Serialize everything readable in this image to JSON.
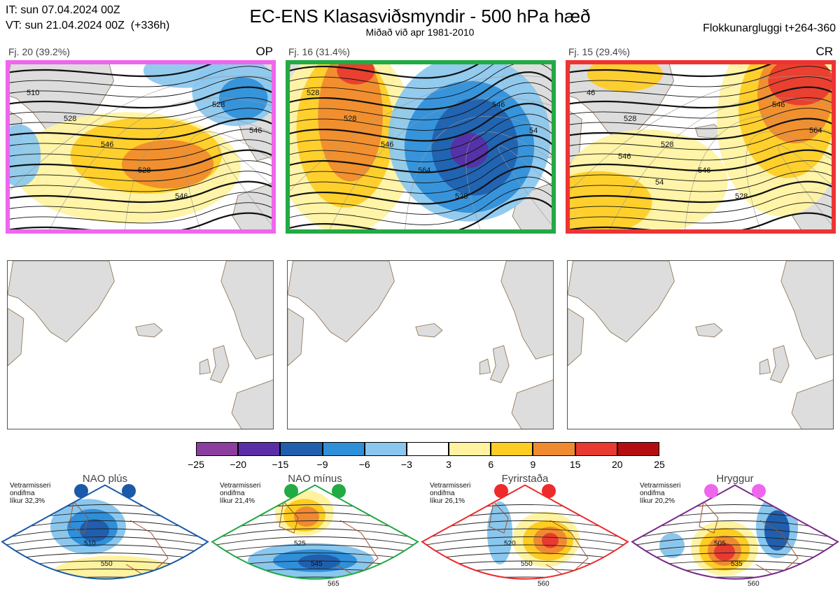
{
  "header": {
    "it_line": "IT: sun 07.04.2024 00Z",
    "vt_line": "VT: sun 21.04.2024 00Z  (+336h)",
    "title": "EC-ENS Klasasviðsmyndir - 500 hPa hæð",
    "subtitle": "Miðað við apr 1981-2010",
    "window": "Flokkunargluggi t+264-360"
  },
  "clusters": [
    {
      "label": "Fj. 20 (39.2%)",
      "tag": "OP",
      "frame_color": "#ee66ee",
      "contours": [
        "510",
        "528",
        "546",
        "528",
        "546",
        "528",
        "546"
      ]
    },
    {
      "label": "Fj. 16 (31.4%)",
      "tag": "",
      "frame_color": "#22aa44",
      "contours": [
        "528",
        "528",
        "546",
        "564",
        "528",
        "546",
        "54"
      ]
    },
    {
      "label": "Fj. 15 (29.4%)",
      "tag": "CR",
      "frame_color": "#ee3333",
      "contours": [
        "46",
        "528",
        "528",
        "546",
        "528",
        "546",
        "564",
        "546",
        "54"
      ]
    }
  ],
  "colorbar": {
    "colors": [
      "#8b3e9e",
      "#5a2ea6",
      "#1f5fae",
      "#2f8fd9",
      "#8ac7ee",
      "#ffffff",
      "#fff3a0",
      "#ffcc22",
      "#f08a30",
      "#e83a30",
      "#b30d12"
    ],
    "labels": [
      "−25",
      "−20",
      "−15",
      "−9",
      "−6",
      "−3",
      "3",
      "6",
      "9",
      "15",
      "20",
      "25"
    ]
  },
  "regimes": [
    {
      "name": "NAO plús",
      "note": "Vetrarmisseri\nondifma\nlíkur 32,3%",
      "dot_color": "#1a5aa8",
      "border": "#1a5aa8",
      "contours": [
        "510",
        "550"
      ]
    },
    {
      "name": "NAO mínus",
      "note": "Vetrarmisseri\nondifma\nlíkur 21,4%",
      "dot_color": "#22aa44",
      "border": "#22aa44",
      "contours": [
        "525",
        "545",
        "565"
      ]
    },
    {
      "name": "Fyrirstaða",
      "note": "Vetrarmisseri\nondifma\nlíkur 26,1%",
      "dot_color": "#ee2a2a",
      "border": "#ee2a2a",
      "contours": [
        "520",
        "550",
        "560"
      ]
    },
    {
      "name": "Hryggur",
      "note": "Vetrarmisseri\nondifma\nlíkur 20,2%",
      "dot_color": "#ee66ee",
      "border": "#7a2a8a",
      "contours": [
        "505",
        "535",
        "560"
      ]
    }
  ]
}
